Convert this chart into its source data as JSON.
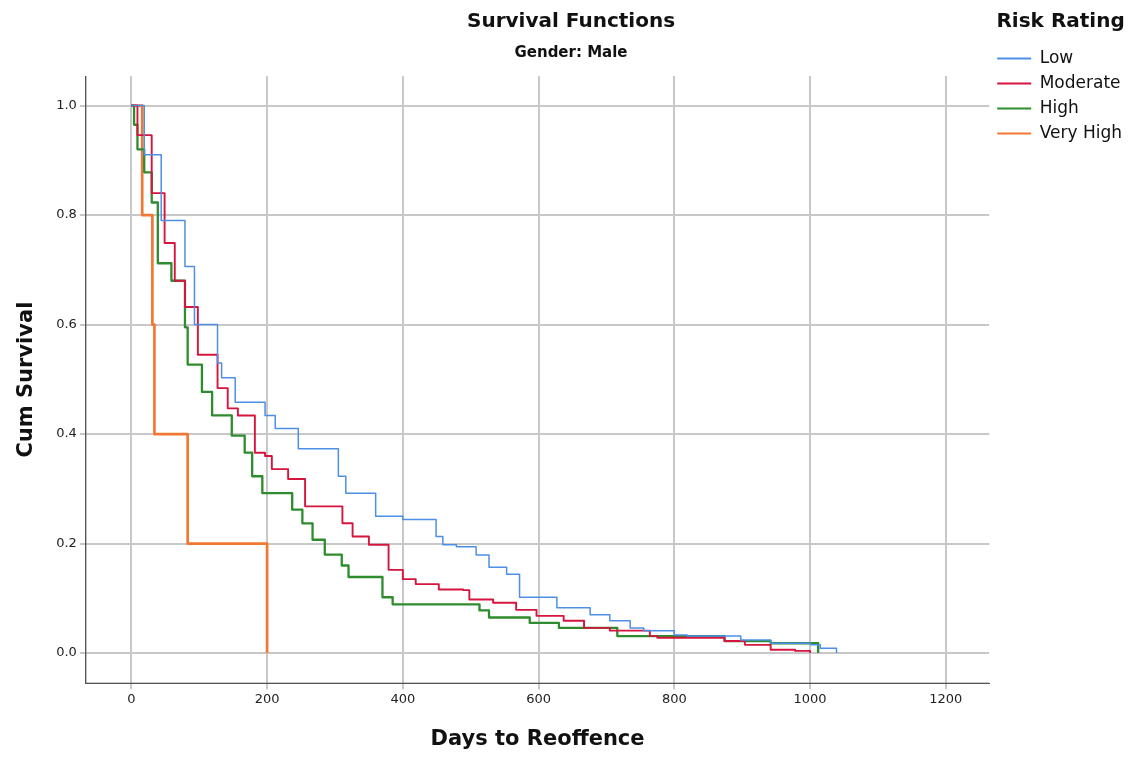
{
  "chart_data": {
    "type": "step",
    "title": "Survival Functions",
    "subtitle": "Gender: Male",
    "xlabel": "Days to Reoffence",
    "ylabel": "Cum Survival",
    "legend_title": "Risk Rating",
    "legend": "right",
    "grid": true,
    "marker": "none",
    "line_style": "solid",
    "xlim": [
      -67,
      1264
    ],
    "xticks": [
      0,
      200,
      400,
      600,
      800,
      1000,
      1200
    ],
    "ylim": [
      -0.055,
      1.054
    ],
    "yticks": [
      {
        "value": 0,
        "label": "0.0"
      },
      {
        "value": 0.2,
        "label": "0.2"
      },
      {
        "value": 0.4,
        "label": "0.4"
      },
      {
        "value": 0.6,
        "label": "0.6"
      },
      {
        "value": 0.8,
        "label": "0.8"
      },
      {
        "value": 1,
        "label": "1.0"
      }
    ],
    "series": [
      {
        "name": "Low",
        "color": "#4d8fe6",
        "x": [
          0,
          19,
          44,
          79,
          93,
          127,
          133,
          153,
          197,
          212,
          246,
          305,
          316,
          360,
          400,
          409,
          449,
          459,
          479,
          508,
          527,
          553,
          572,
          607,
          627,
          676,
          705,
          735,
          755,
          800,
          819,
          898,
          942,
          1001,
          1015,
          1039
        ],
        "values": [
          1,
          0.91,
          0.79,
          0.706,
          0.6,
          0.53,
          0.503,
          0.458,
          0.434,
          0.41,
          0.373,
          0.323,
          0.292,
          0.25,
          0.244,
          0.244,
          0.213,
          0.198,
          0.194,
          0.179,
          0.157,
          0.144,
          0.102,
          0.102,
          0.083,
          0.07,
          0.059,
          0.046,
          0.041,
          0.033,
          0.031,
          0.024,
          0.018,
          0.015,
          0.009,
          0
        ]
      },
      {
        "name": "Moderate",
        "color": "#d6153e",
        "x": [
          0,
          9,
          30,
          49,
          64,
          79,
          98,
          127,
          142,
          157,
          182,
          197,
          207,
          231,
          256,
          276,
          311,
          326,
          350,
          379,
          400,
          419,
          453,
          489,
          498,
          533,
          567,
          597,
          637,
          667,
          705,
          764,
          775,
          874,
          904,
          942,
          978,
          1000
        ],
        "values": [
          1,
          0.946,
          0.84,
          0.749,
          0.68,
          0.632,
          0.545,
          0.484,
          0.447,
          0.434,
          0.366,
          0.36,
          0.336,
          0.318,
          0.268,
          0.268,
          0.237,
          0.213,
          0.198,
          0.152,
          0.135,
          0.126,
          0.116,
          0.115,
          0.098,
          0.092,
          0.079,
          0.068,
          0.059,
          0.046,
          0.041,
          0.031,
          0.028,
          0.022,
          0.015,
          0.006,
          0.004,
          0
        ]
      },
      {
        "name": "High",
        "color": "#2e8b2e",
        "x": [
          0,
          4,
          9,
          19,
          30,
          39,
          59,
          79,
          83,
          104,
          119,
          148,
          167,
          178,
          193,
          216,
          237,
          252,
          267,
          285,
          310,
          320,
          360,
          370,
          385,
          508,
          513,
          527,
          587,
          630,
          716,
          874,
          942,
          1012
        ],
        "values": [
          1,
          0.965,
          0.92,
          0.878,
          0.823,
          0.712,
          0.68,
          0.595,
          0.527,
          0.477,
          0.434,
          0.397,
          0.366,
          0.323,
          0.292,
          0.292,
          0.262,
          0.237,
          0.207,
          0.18,
          0.16,
          0.139,
          0.139,
          0.102,
          0.089,
          0.089,
          0.078,
          0.065,
          0.055,
          0.046,
          0.031,
          0.022,
          0.018,
          0
        ]
      },
      {
        "name": "Very High",
        "color": "#f27733",
        "x": [
          0,
          16,
          31,
          34,
          83,
          200
        ],
        "values": [
          1,
          0.8,
          0.6,
          0.4,
          0.2,
          0
        ]
      }
    ]
  }
}
